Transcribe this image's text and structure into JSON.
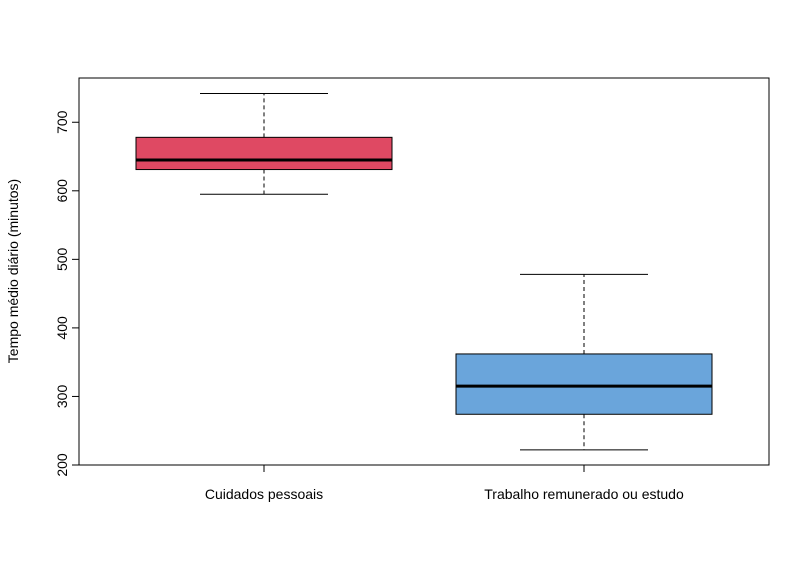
{
  "chart_data": {
    "type": "boxplot",
    "title": "",
    "xlabel": "",
    "ylabel": "Tempo médio diário (minutos)",
    "ylim": [
      200,
      750
    ],
    "yticks": [
      200,
      300,
      400,
      500,
      600,
      700
    ],
    "grid": false,
    "categories": [
      "Cuidados pessoais",
      "Trabalho remunerado ou estudo"
    ],
    "boxes": [
      {
        "category": "Cuidados pessoais",
        "min": 595,
        "q1": 631,
        "median": 645,
        "q3": 678,
        "max": 742,
        "color": "#DF4963"
      },
      {
        "category": "Trabalho remunerado ou estudo",
        "min": 222,
        "q1": 274,
        "median": 315,
        "q3": 362,
        "max": 478,
        "color": "#6AA5DB"
      }
    ]
  }
}
